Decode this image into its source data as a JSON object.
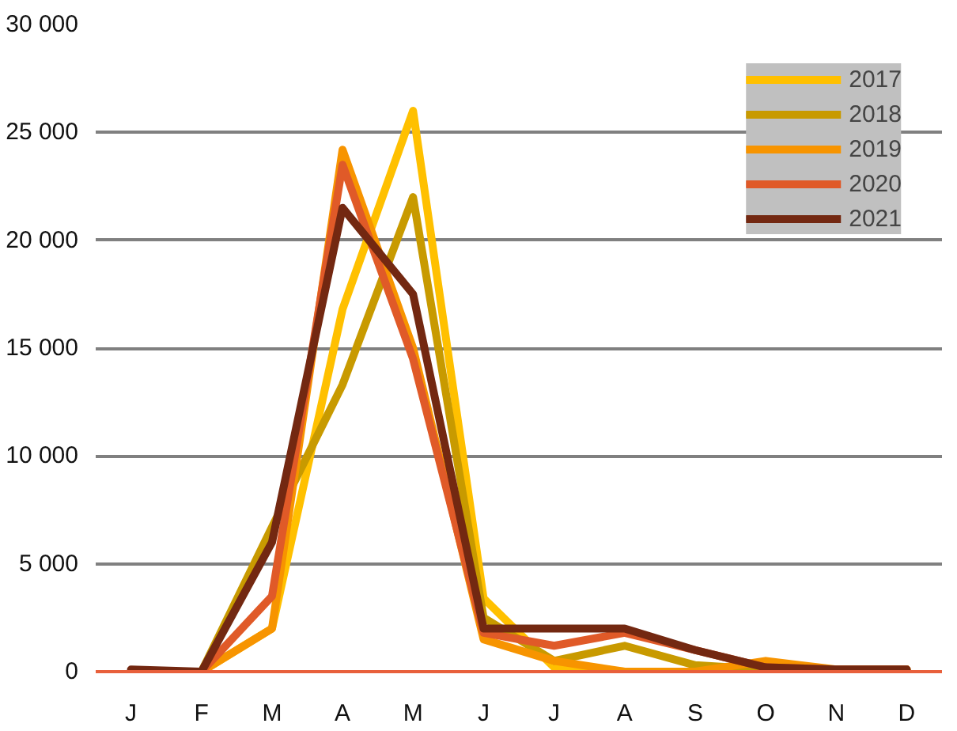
{
  "chart_data": {
    "type": "line",
    "categories": [
      "J",
      "F",
      "M",
      "A",
      "M",
      "J",
      "J",
      "A",
      "S",
      "O",
      "N",
      "D"
    ],
    "series": [
      {
        "name": "2017",
        "color": "#ffc000",
        "values": [
          0,
          0,
          2000,
          16800,
          26000,
          3400,
          200,
          0,
          0,
          200,
          100,
          100
        ]
      },
      {
        "name": "2018",
        "color": "#c89a00",
        "values": [
          0,
          0,
          6700,
          13300,
          22000,
          2500,
          500,
          1200,
          300,
          100,
          100,
          100
        ]
      },
      {
        "name": "2019",
        "color": "#f79400",
        "values": [
          0,
          0,
          2000,
          24200,
          15000,
          1500,
          500,
          0,
          0,
          500,
          100,
          100
        ]
      },
      {
        "name": "2020",
        "color": "#e05a28",
        "values": [
          0,
          0,
          3500,
          23500,
          14500,
          1800,
          1200,
          1800,
          1000,
          200,
          100,
          100
        ]
      },
      {
        "name": "2021",
        "color": "#732811",
        "values": [
          100,
          0,
          6000,
          21500,
          17500,
          2000,
          2000,
          2000,
          1000,
          200,
          100,
          100
        ]
      }
    ],
    "ylim": [
      0,
      30000
    ],
    "yticks": [
      {
        "value": 0,
        "label": "0"
      },
      {
        "value": 5000,
        "label": "5 000"
      },
      {
        "value": 10000,
        "label": "10 000"
      },
      {
        "value": 15000,
        "label": "15 000"
      },
      {
        "value": 20000,
        "label": "20 000"
      },
      {
        "value": 25000,
        "label": "25 000"
      },
      {
        "value": 30000,
        "label": "30 000"
      }
    ],
    "grid": "y",
    "legend": "top right"
  }
}
